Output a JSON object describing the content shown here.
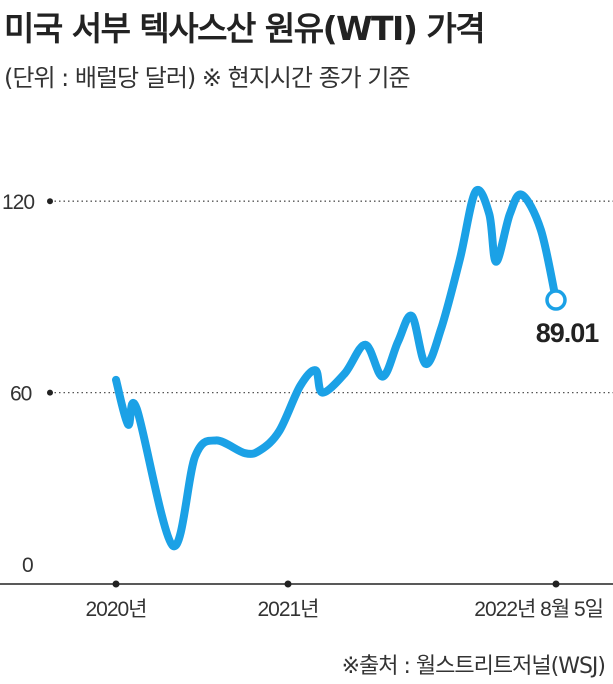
{
  "title": "미국 서부 텍사스산 원유(WTI) 가격",
  "subtitle": "(단위 : 배럴당 달러)  ※ 현지시간 종가 기준",
  "source": "※출처 : 월스트리트저널(WSJ)",
  "chart_data": {
    "type": "line",
    "title": "미국 서부 텍사스산 원유(WTI) 가격",
    "ylabel": "배럴당 달러",
    "xlabel": "",
    "ylim": [
      0,
      120
    ],
    "yticks": [
      {
        "value": 0,
        "label": "0"
      },
      {
        "value": 60,
        "label": "60"
      },
      {
        "value": 120,
        "label": "120"
      }
    ],
    "xlim": [
      2019.6,
      2023.0
    ],
    "xticks": [
      {
        "value": 2020.0,
        "label": "2020년"
      },
      {
        "value": 2021.0,
        "label": "2021년"
      },
      {
        "value": 2022.6,
        "label": "2022년 8월 5일"
      }
    ],
    "grid": "horizontal dotted",
    "color": "#1ba1e6",
    "series": [
      {
        "name": "WTI",
        "x": [
          2020.0,
          2020.07,
          2020.12,
          2020.33,
          2020.46,
          2020.58,
          2020.75,
          2020.84,
          2020.95,
          2021.07,
          2021.16,
          2021.2,
          2021.33,
          2021.45,
          2021.55,
          2021.64,
          2021.72,
          2021.8,
          2021.89,
          2022.0,
          2022.09,
          2022.17,
          2022.21,
          2022.29,
          2022.36,
          2022.47,
          2022.6
        ],
        "y": [
          64,
          50,
          55,
          12,
          40,
          45,
          41,
          42,
          48,
          62,
          67,
          60,
          66,
          75,
          65,
          76,
          84,
          69,
          80,
          102,
          123,
          116,
          101,
          116,
          122,
          111,
          89.01
        ]
      }
    ],
    "annotations": [
      {
        "x": 2022.6,
        "y": 89.01,
        "label": "89.01"
      }
    ]
  }
}
